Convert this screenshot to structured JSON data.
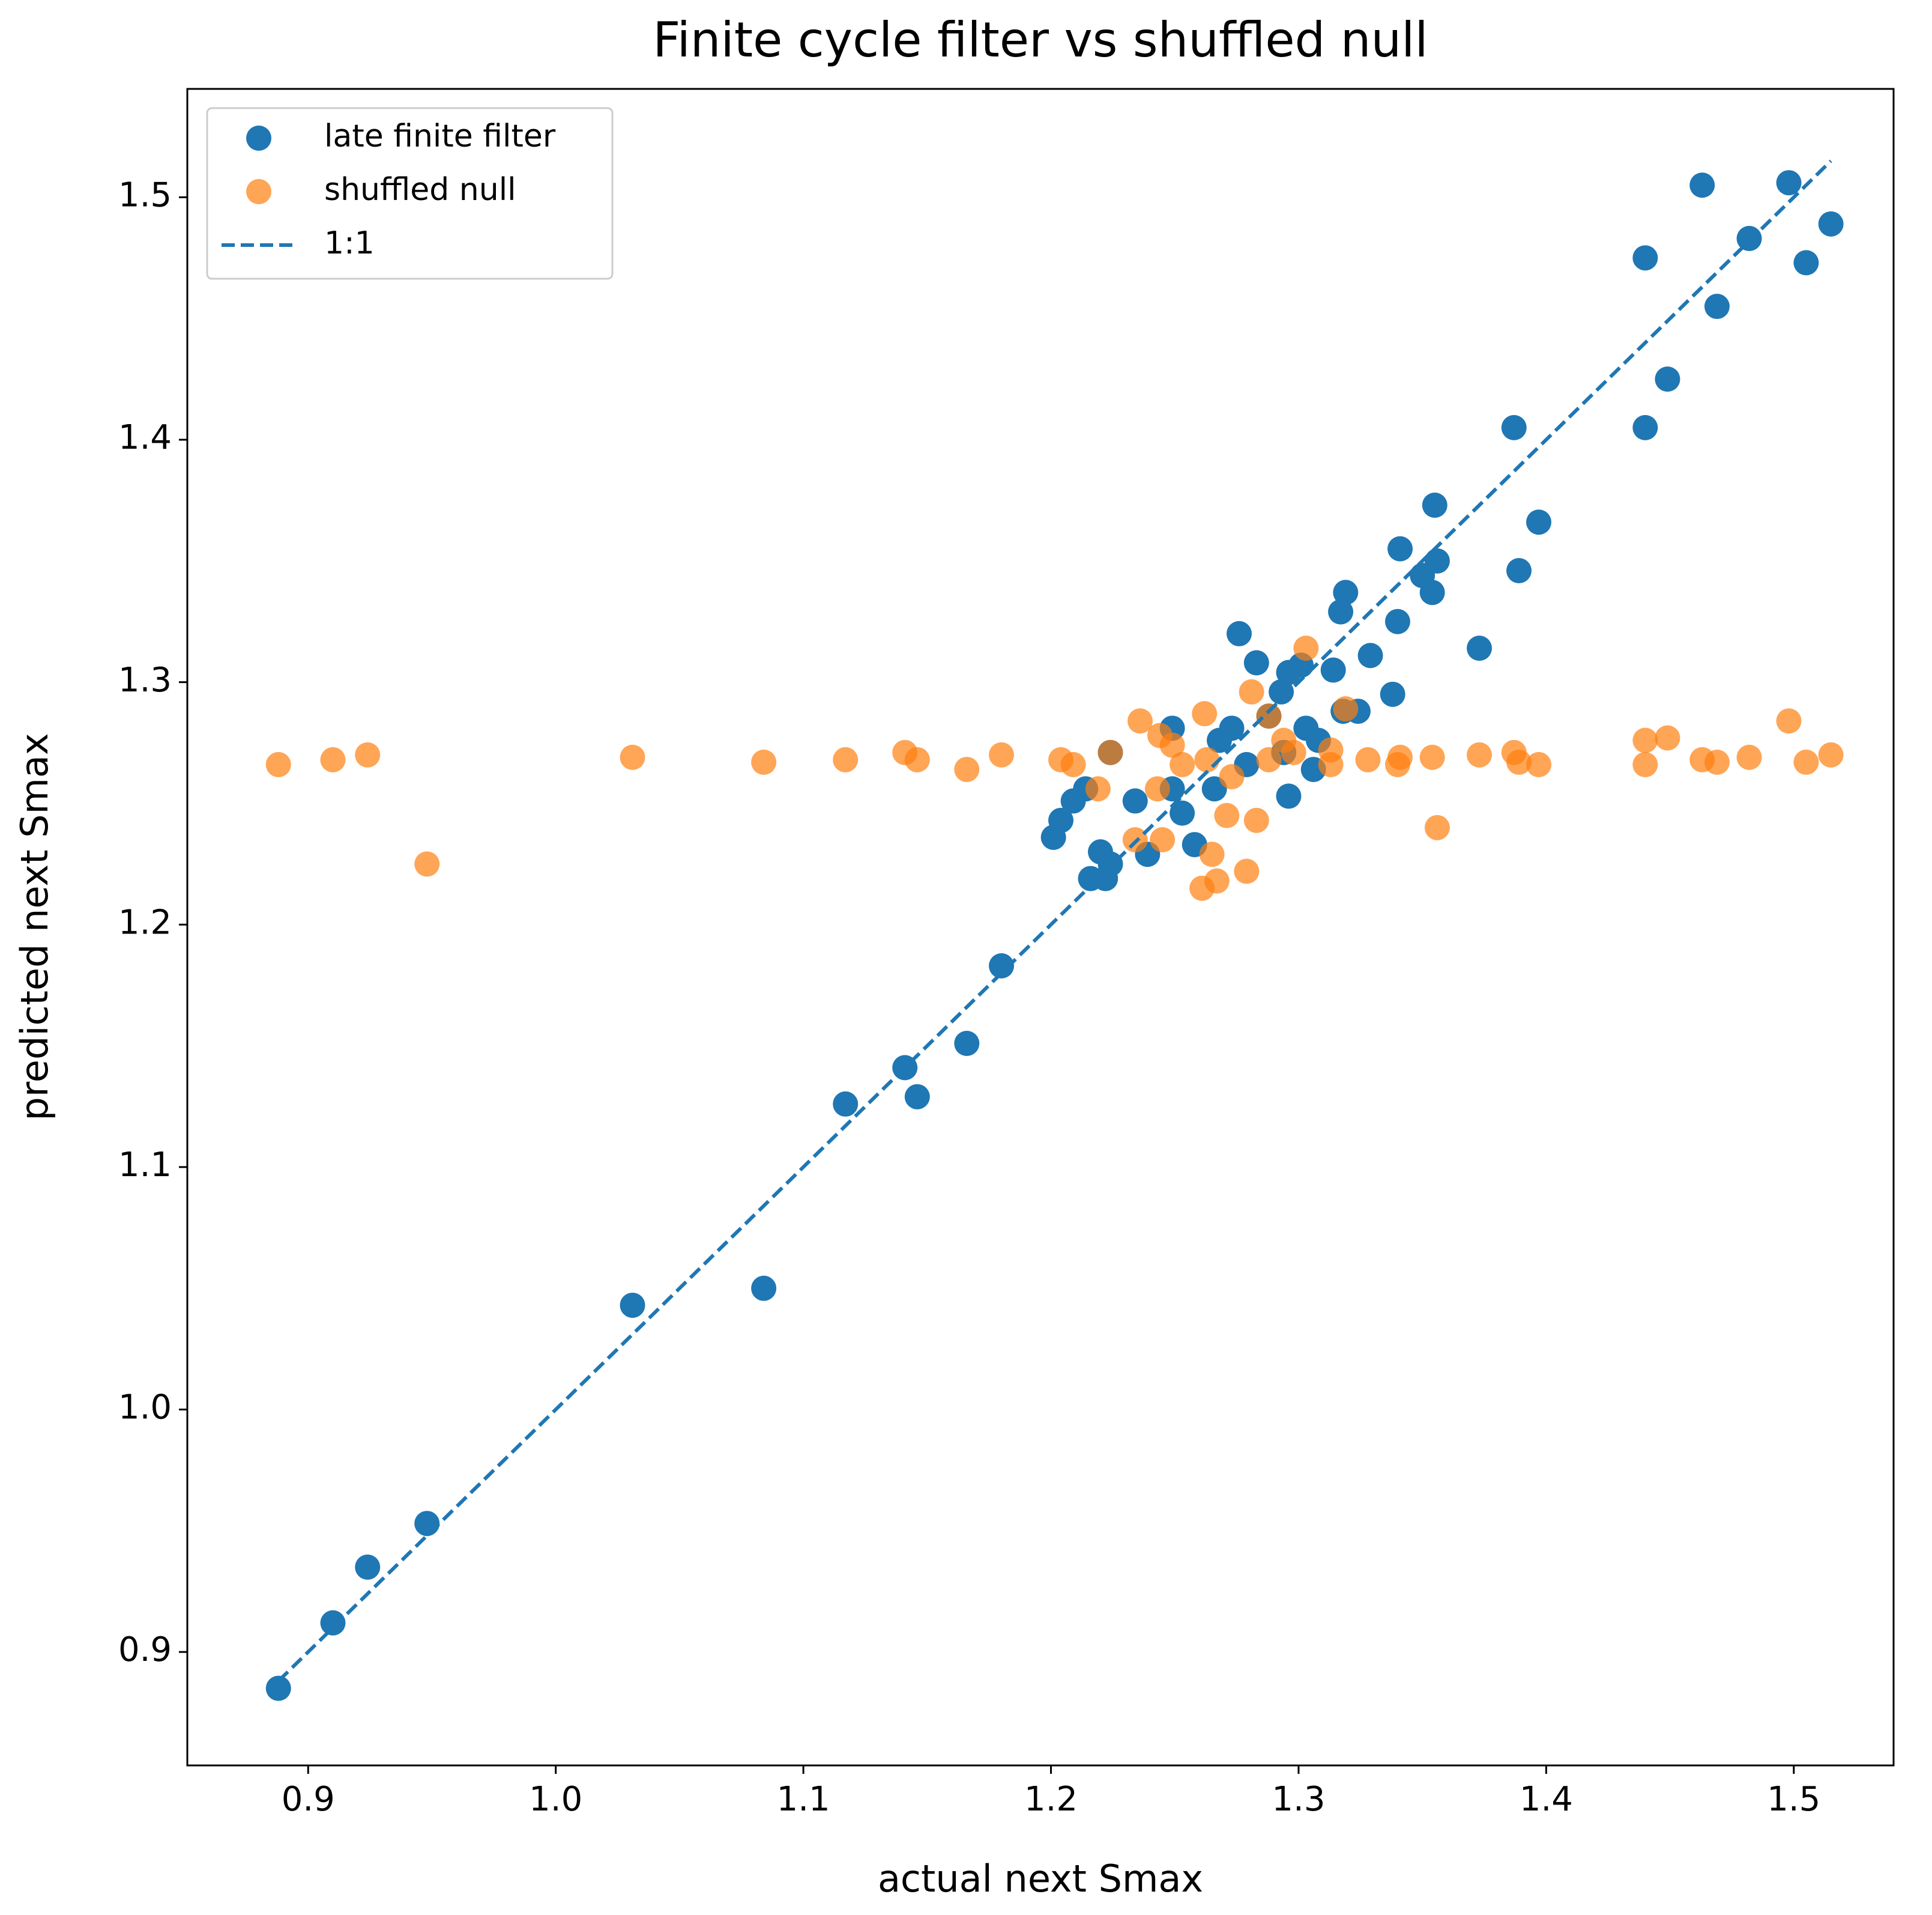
{
  "chart_data": {
    "type": "scatter",
    "title": "Finite cycle filter vs shuffled null",
    "x_label": "actual next Smax",
    "y_label": "predicted next Smax",
    "xlim": [
      0.8512,
      1.5403
    ],
    "ylim": [
      0.8532,
      1.5447
    ],
    "xticks": [
      0.9,
      {
        "value": 1,
        "label": "1.0"
      },
      1.1,
      1.2,
      1.3,
      1.4,
      1.5
    ],
    "yticks": [
      0.9,
      {
        "value": 1,
        "label": "1.0"
      },
      1.1,
      1.2,
      1.3,
      1.4,
      1.5
    ],
    "grid": false,
    "legend": "upper left",
    "series": [
      {
        "name": "late finite filter",
        "color": "#1f77b4",
        "kind": "scatter",
        "alpha": 1,
        "x": [
          0.888,
          0.91,
          0.924,
          0.948,
          1.031,
          1.084,
          1.117,
          1.141,
          1.146,
          1.166,
          1.18,
          1.276,
          1.319,
          1.317,
          1.34,
          1.341,
          1.355,
          1.356,
          1.354,
          1.35,
          1.373,
          1.387,
          1.389,
          1.397,
          1.44,
          1.44,
          1.449,
          1.463,
          1.469,
          1.482,
          1.498,
          1.505,
          1.515,
          1.338,
          1.314,
          1.329,
          1.283,
          1.296,
          1.301,
          1.293,
          1.318,
          1.324,
          1.201,
          1.204,
          1.216,
          1.222,
          1.224,
          1.22,
          1.239,
          1.209,
          1.214,
          1.224,
          1.234,
          1.249,
          1.253,
          1.258,
          1.266,
          1.268,
          1.273,
          1.288,
          1.303,
          1.306,
          1.296,
          1.308,
          1.249,
          1.279,
          1.294
        ],
        "values": [
          0.885,
          0.912,
          0.935,
          0.953,
          1.043,
          1.05,
          1.126,
          1.141,
          1.129,
          1.151,
          1.183,
          1.32,
          1.337,
          1.329,
          1.325,
          1.355,
          1.373,
          1.35,
          1.337,
          1.344,
          1.314,
          1.405,
          1.346,
          1.366,
          1.475,
          1.405,
          1.425,
          1.505,
          1.455,
          1.483,
          1.506,
          1.473,
          1.489,
          1.295,
          1.305,
          1.311,
          1.308,
          1.304,
          1.307,
          1.296,
          1.288,
          1.288,
          1.236,
          1.243,
          1.219,
          1.219,
          1.225,
          1.23,
          1.229,
          1.251,
          1.256,
          1.271,
          1.251,
          1.256,
          1.246,
          1.233,
          1.256,
          1.276,
          1.281,
          1.286,
          1.281,
          1.264,
          1.253,
          1.276,
          1.281,
          1.266,
          1.271
        ]
      },
      {
        "name": "shuffled null",
        "color": "#ff7f0e",
        "kind": "scatter",
        "alpha": 0.7,
        "x": [
          0.888,
          0.91,
          0.924,
          0.948,
          1.031,
          1.084,
          1.117,
          1.141,
          1.146,
          1.166,
          1.18,
          1.373,
          1.387,
          1.389,
          1.397,
          1.44,
          1.44,
          1.449,
          1.463,
          1.469,
          1.482,
          1.498,
          1.505,
          1.515,
          1.356,
          1.354,
          1.341,
          1.34,
          1.303,
          1.319,
          1.281,
          1.262,
          1.261,
          1.267,
          1.279,
          1.265,
          1.271,
          1.283,
          1.234,
          1.245,
          1.243,
          1.236,
          1.219,
          1.204,
          1.209,
          1.224,
          1.249,
          1.253,
          1.263,
          1.273,
          1.288,
          1.298,
          1.313,
          1.328,
          1.313,
          1.294,
          1.244,
          1.288
        ],
        "values": [
          1.266,
          1.268,
          1.27,
          1.225,
          1.269,
          1.267,
          1.268,
          1.271,
          1.268,
          1.264,
          1.27,
          1.27,
          1.271,
          1.267,
          1.266,
          1.276,
          1.266,
          1.277,
          1.268,
          1.267,
          1.269,
          1.284,
          1.267,
          1.27,
          1.24,
          1.269,
          1.269,
          1.266,
          1.314,
          1.289,
          1.296,
          1.287,
          1.215,
          1.218,
          1.222,
          1.229,
          1.245,
          1.243,
          1.235,
          1.235,
          1.256,
          1.284,
          1.256,
          1.268,
          1.266,
          1.271,
          1.274,
          1.266,
          1.268,
          1.261,
          1.268,
          1.271,
          1.272,
          1.268,
          1.266,
          1.276,
          1.278,
          1.286
        ]
      },
      {
        "name": "1:1",
        "color": "#1f77b4",
        "kind": "line",
        "style": "dashed",
        "x": [
          0.888,
          1.515
        ],
        "values": [
          0.888,
          1.515
        ]
      }
    ]
  }
}
